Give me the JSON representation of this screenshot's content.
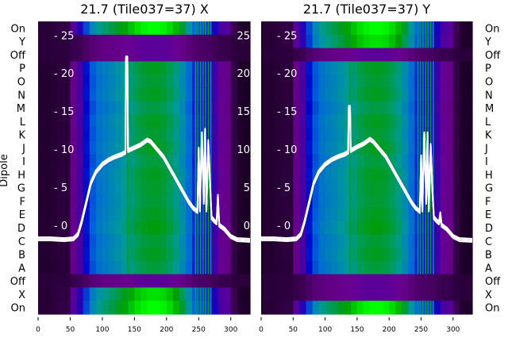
{
  "chart_data": [
    {
      "type": "heatmap",
      "title": "21.7 (Tile037=37) X",
      "ylabel": "Dipole",
      "row_labels": [
        "On",
        "Y",
        "Off",
        "P",
        "O",
        "N",
        "M",
        "L",
        "K",
        "J",
        "I",
        "H",
        "G",
        "F",
        "E",
        "D",
        "C",
        "B",
        "A",
        "Off",
        "X",
        "On"
      ],
      "row_gain": [
        1.0,
        0.12,
        0.1,
        0.8,
        0.78,
        0.8,
        0.76,
        0.8,
        0.78,
        0.8,
        0.77,
        0.8,
        0.79,
        0.78,
        0.8,
        0.82,
        0.78,
        0.8,
        0.77,
        0.1,
        0.95,
        1.0
      ],
      "x_ticks": [
        0,
        50,
        100,
        150,
        200,
        250,
        300
      ],
      "xlim": [
        0,
        330
      ],
      "overlay_yticks": [
        0,
        5,
        10,
        15,
        20,
        25
      ],
      "overlay_ylim": [
        -11.7,
        26.8
      ],
      "spectral_profile_step": 10,
      "spectral_profile": [
        0.04,
        0.04,
        0.05,
        0.06,
        0.06,
        0.2,
        0.28,
        0.45,
        0.6,
        0.68,
        0.72,
        0.76,
        0.8,
        0.85,
        0.9,
        0.95,
        0.98,
        1.0,
        1.0,
        0.98,
        0.94,
        0.88,
        0.78,
        0.65,
        0.5,
        0.45,
        0.42,
        0.3,
        0.22,
        0.2,
        0.08,
        0.03,
        0.02,
        0.02
      ],
      "line": {
        "x": [
          0,
          20,
          40,
          55,
          62,
          68,
          75,
          82,
          90,
          100,
          110,
          120,
          130,
          136,
          137,
          139,
          140,
          150,
          160,
          170,
          175,
          185,
          195,
          205,
          215,
          225,
          235,
          242,
          248,
          250,
          252,
          255,
          258,
          260,
          262,
          265,
          268,
          270,
          275,
          278,
          280,
          282,
          290,
          300,
          310,
          330
        ],
        "y": [
          -1.8,
          -1.8,
          -1.9,
          -1.8,
          -1.2,
          0.5,
          3,
          5.5,
          7,
          8,
          8.6,
          9,
          9.3,
          9.6,
          22,
          22,
          9.8,
          10.2,
          10.6,
          11.2,
          11,
          10,
          9,
          7.5,
          6,
          4.5,
          3,
          2.2,
          1.8,
          10,
          2,
          12,
          3,
          12.5,
          2,
          11,
          5,
          1,
          0.5,
          0.3,
          3.8,
          0,
          -0.5,
          -1.5,
          -1.9,
          -2
        ]
      }
    },
    {
      "type": "heatmap",
      "title": "21.7 (Tile037=37) Y",
      "ylabel": "",
      "row_labels": [
        "On",
        "Y",
        "Off",
        "P",
        "O",
        "N",
        "M",
        "L",
        "K",
        "J",
        "I",
        "H",
        "G",
        "F",
        "E",
        "D",
        "C",
        "B",
        "A",
        "Off",
        "X",
        "On"
      ],
      "row_gain": [
        1.0,
        0.95,
        0.1,
        0.8,
        0.78,
        0.8,
        0.76,
        0.8,
        0.78,
        0.8,
        0.77,
        0.8,
        0.79,
        0.78,
        0.8,
        0.82,
        0.78,
        0.8,
        0.77,
        0.1,
        0.12,
        1.0
      ],
      "x_ticks": [
        0,
        50,
        100,
        150,
        200,
        250,
        300
      ],
      "xlim": [
        0,
        330
      ],
      "overlay_yticks": [
        0,
        5,
        10,
        15,
        20,
        25
      ],
      "overlay_ylim": [
        -11.7,
        26.8
      ],
      "spectral_profile_step": 10,
      "spectral_profile": [
        0.04,
        0.04,
        0.05,
        0.06,
        0.06,
        0.2,
        0.28,
        0.45,
        0.6,
        0.68,
        0.72,
        0.76,
        0.8,
        0.85,
        0.9,
        0.95,
        0.98,
        1.0,
        1.0,
        0.98,
        0.94,
        0.88,
        0.78,
        0.65,
        0.5,
        0.45,
        0.42,
        0.3,
        0.22,
        0.2,
        0.08,
        0.03,
        0.02,
        0.02
      ],
      "line": {
        "x": [
          0,
          20,
          40,
          55,
          62,
          68,
          75,
          82,
          90,
          100,
          110,
          120,
          130,
          136,
          137,
          139,
          140,
          150,
          160,
          170,
          175,
          185,
          195,
          205,
          215,
          225,
          235,
          242,
          248,
          250,
          252,
          255,
          258,
          260,
          262,
          265,
          268,
          270,
          275,
          278,
          280,
          282,
          290,
          300,
          310,
          330
        ],
        "y": [
          -1.8,
          -1.8,
          -1.9,
          -1.8,
          -1.2,
          0.5,
          3,
          5.5,
          7,
          8,
          8.6,
          9,
          9.3,
          9.6,
          15.5,
          15.5,
          9.8,
          10.3,
          10.7,
          11.3,
          11,
          10,
          9,
          7.5,
          6,
          4.5,
          3,
          2.2,
          1.8,
          9,
          2,
          12,
          3,
          12,
          2,
          10.5,
          4,
          1,
          0.5,
          0.3,
          1.5,
          0,
          -0.5,
          -1.5,
          -1.9,
          -2
        ]
      }
    }
  ],
  "colors": {
    "line": "#ffffff",
    "colormap": [
      "#12001a",
      "#6a0090",
      "#0000c8",
      "#0068d8",
      "#009a9a",
      "#009c00",
      "#00ff00"
    ]
  }
}
